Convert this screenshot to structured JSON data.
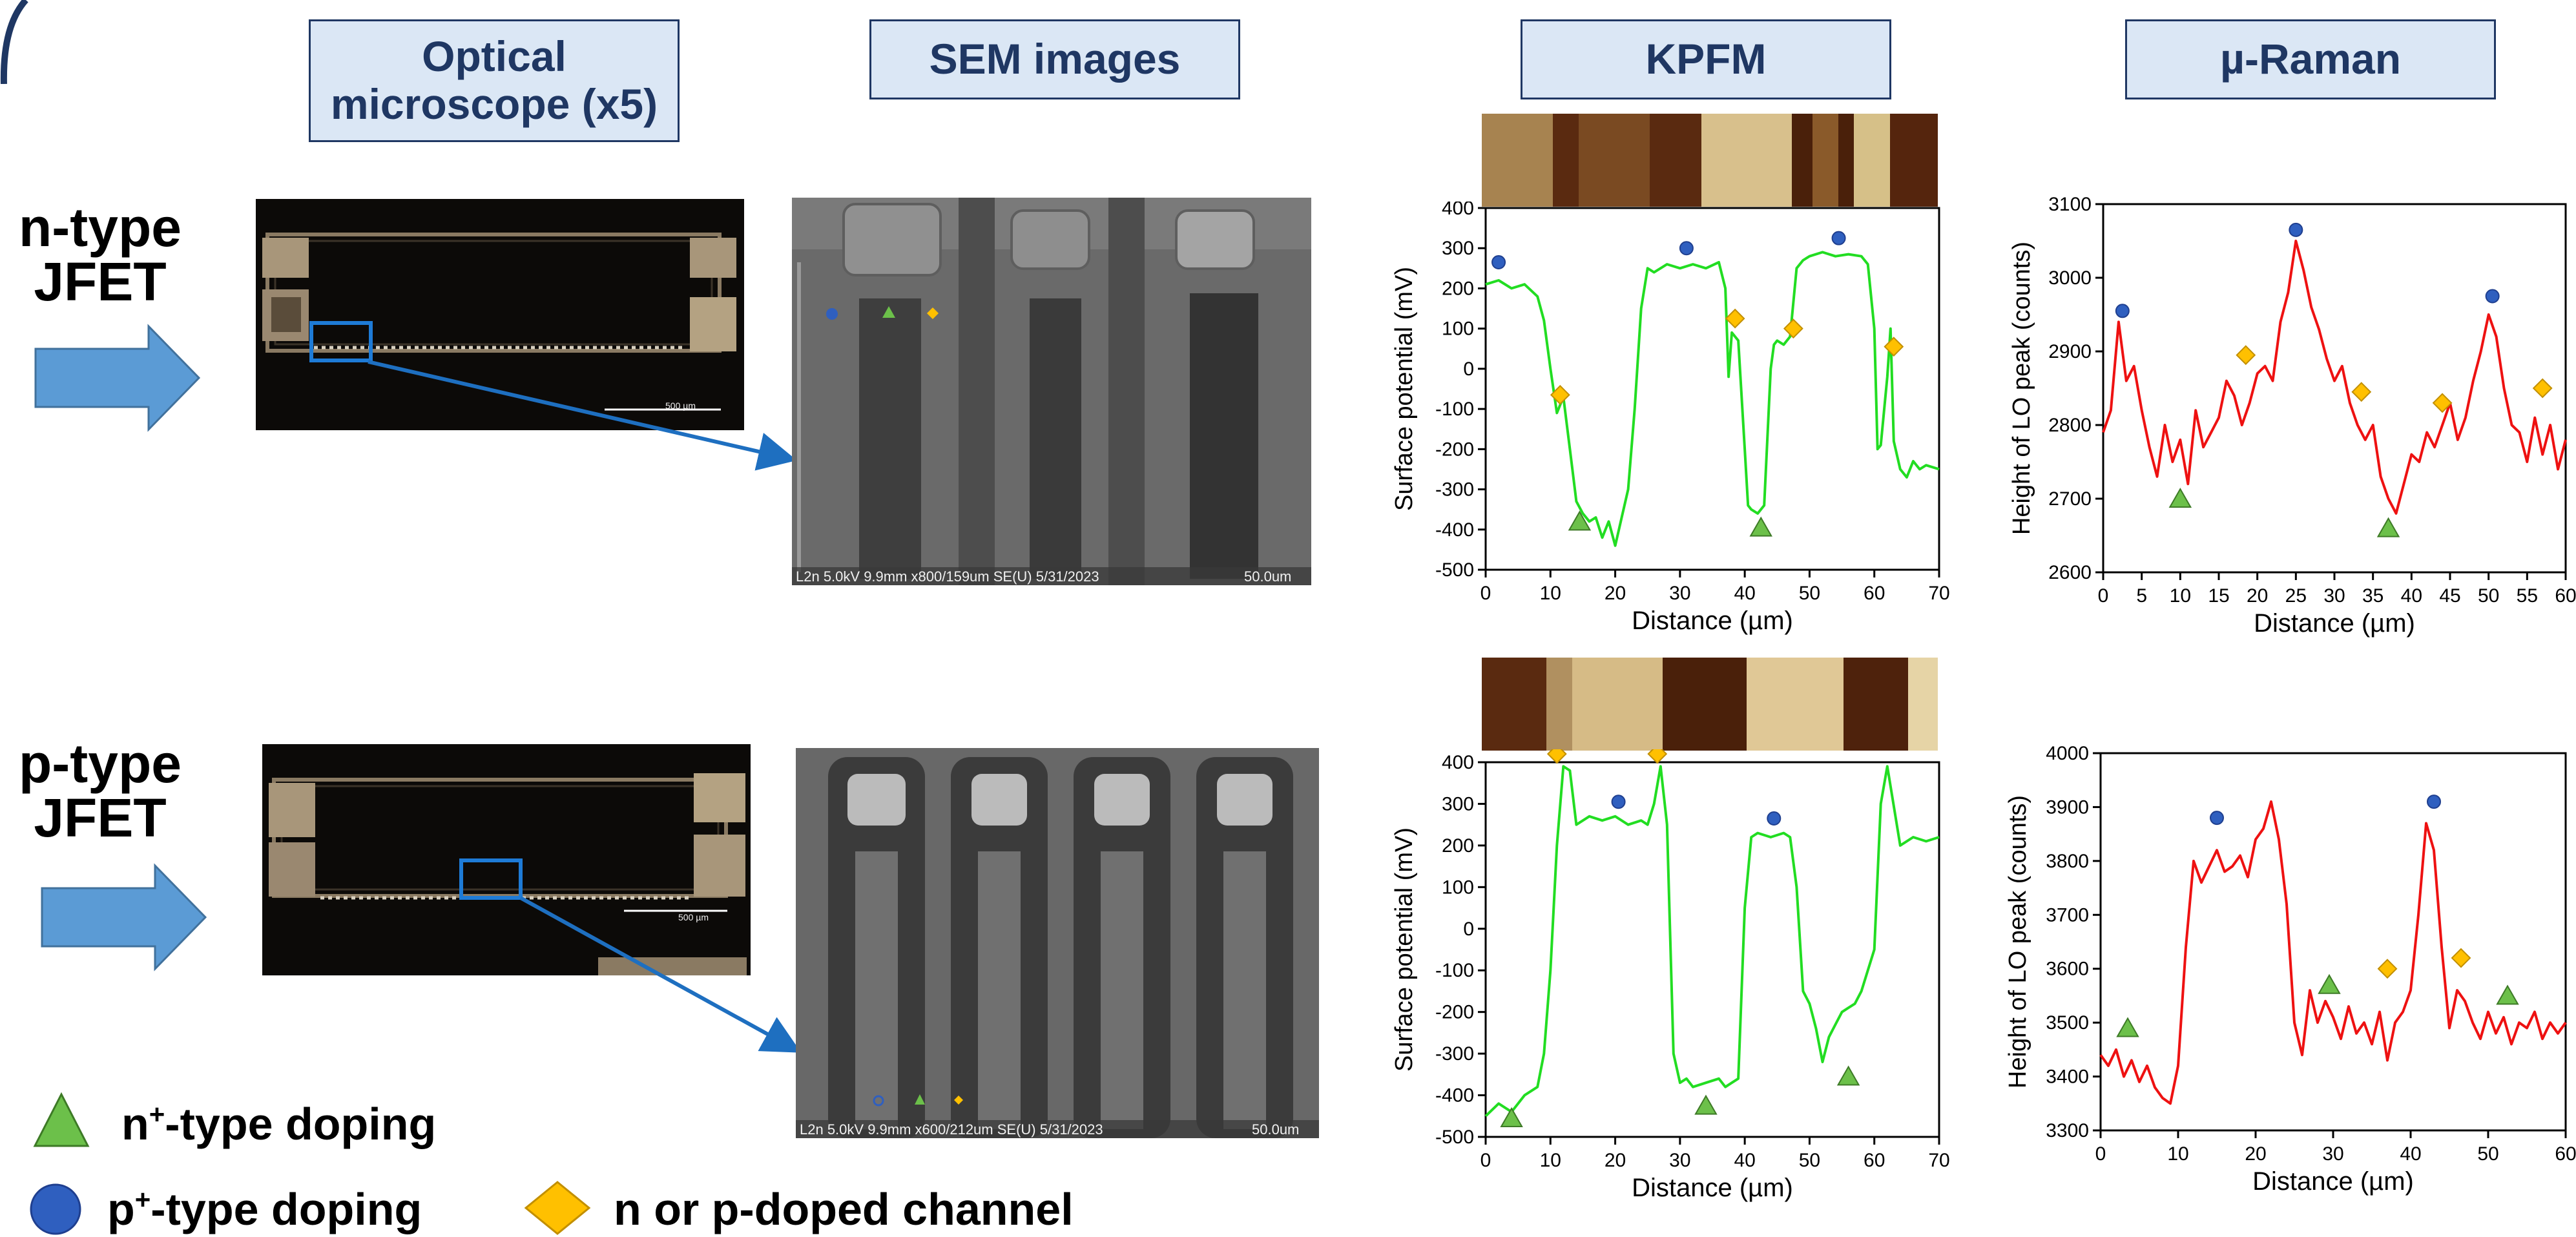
{
  "headers": {
    "optical": "Optical microscope (x5)",
    "sem": "SEM images",
    "kpfm": "KPFM",
    "raman": "µ-Raman"
  },
  "rows": {
    "n": {
      "line1": "n-type",
      "line2": "JFET"
    },
    "p": {
      "line1": "p-type",
      "line2": "JFET"
    }
  },
  "optical_scale": {
    "n": "500 µm",
    "p": "500 µm"
  },
  "sem_captions": {
    "n_left": "L2n 5.0kV 9.9mm x800/159um SE(U) 5/31/2023",
    "n_right": "50.0um",
    "p_left": "L2n 5.0kV 9.9mm x600/212um SE(U) 5/31/2023",
    "p_right": "50.0um"
  },
  "legend": {
    "n_plus": {
      "base": "n",
      "sup": "+",
      "rest": "-type doping"
    },
    "p_plus": {
      "base": "p",
      "sup": "+",
      "rest": "-type doping"
    },
    "channel": "n or p-doped channel"
  },
  "colors": {
    "header_fill": "#dbe7f5",
    "header_border": "#1f3763",
    "arrow_fill": "#5b9bd5",
    "kpfm_line": "#22dd22",
    "raman_line": "#ee1111",
    "triangle": "#6cc04a",
    "circle": "#2f5fbf",
    "diamond": "#ffc000"
  },
  "chart_data": [
    {
      "type": "line",
      "id": "kpfm_n",
      "xlabel": "Distance (µm)",
      "ylabel": "Surface potential (mV)",
      "xlim": [
        0,
        70
      ],
      "ylim": [
        -500,
        400
      ],
      "xticks": [
        0,
        10,
        20,
        30,
        40,
        50,
        60,
        70
      ],
      "yticks": [
        -500,
        -400,
        -300,
        -200,
        -100,
        0,
        100,
        200,
        300,
        400
      ],
      "x": [
        0,
        2,
        4,
        6,
        8,
        9,
        10,
        11,
        12,
        13,
        14,
        15,
        16,
        17,
        18,
        19,
        20,
        21,
        22,
        23,
        24,
        25,
        26,
        28,
        30,
        32,
        34,
        36,
        37,
        37.5,
        38,
        39,
        40,
        40.5,
        41,
        42,
        43,
        44,
        44.5,
        45,
        46,
        47,
        48,
        49,
        50,
        52,
        54,
        56,
        58,
        59,
        60,
        60.5,
        61,
        62,
        62.5,
        63,
        64,
        65,
        66,
        67,
        68,
        70
      ],
      "y": [
        210,
        220,
        200,
        210,
        180,
        120,
        0,
        -110,
        -70,
        -200,
        -330,
        -360,
        -380,
        -370,
        -420,
        -380,
        -440,
        -370,
        -300,
        -100,
        150,
        250,
        240,
        260,
        250,
        260,
        250,
        265,
        200,
        -20,
        90,
        70,
        -200,
        -340,
        -350,
        -360,
        -340,
        0,
        60,
        70,
        60,
        80,
        250,
        270,
        280,
        290,
        280,
        285,
        280,
        260,
        100,
        -200,
        -190,
        -20,
        100,
        -180,
        -250,
        -270,
        -230,
        -250,
        -240,
        -250
      ]
    },
    {
      "type": "line",
      "id": "kpfm_p",
      "xlabel": "Distance (µm)",
      "ylabel": "Surface potential (mV)",
      "xlim": [
        0,
        70
      ],
      "ylim": [
        -500,
        400
      ],
      "xticks": [
        0,
        10,
        20,
        30,
        40,
        50,
        60,
        70
      ],
      "yticks": [
        -500,
        -400,
        -300,
        -200,
        -100,
        0,
        100,
        200,
        300,
        400
      ],
      "x": [
        0,
        2,
        4,
        6,
        8,
        9,
        10,
        11,
        12,
        13,
        14,
        16,
        18,
        20,
        22,
        24,
        25,
        26,
        27,
        28,
        29,
        30,
        31,
        32,
        34,
        36,
        37,
        38,
        39,
        40,
        41,
        42,
        44,
        46,
        47,
        48,
        49,
        50,
        51,
        52,
        53,
        54,
        55,
        56,
        57,
        58,
        59,
        60,
        61,
        62,
        64,
        66,
        68,
        70
      ],
      "y": [
        -450,
        -420,
        -440,
        -400,
        -380,
        -300,
        -100,
        200,
        390,
        380,
        250,
        270,
        260,
        270,
        250,
        260,
        250,
        300,
        390,
        250,
        -300,
        -370,
        -360,
        -380,
        -370,
        -360,
        -380,
        -370,
        -360,
        50,
        220,
        230,
        220,
        230,
        220,
        100,
        -150,
        -180,
        -240,
        -320,
        -260,
        -230,
        -200,
        -190,
        -180,
        -150,
        -100,
        -50,
        300,
        390,
        200,
        220,
        210,
        220
      ]
    },
    {
      "type": "line",
      "id": "raman_n",
      "xlabel": "Distance (µm)",
      "ylabel": "Height of LO peak (counts)",
      "xlim": [
        0,
        60
      ],
      "ylim": [
        2600,
        3100
      ],
      "xticks": [
        0,
        5,
        10,
        15,
        20,
        25,
        30,
        35,
        40,
        45,
        50,
        55,
        60
      ],
      "yticks": [
        2600,
        2700,
        2800,
        2900,
        3000,
        3100
      ],
      "x": [
        0,
        1,
        2,
        3,
        4,
        5,
        6,
        7,
        8,
        9,
        10,
        11,
        12,
        13,
        14,
        15,
        16,
        17,
        18,
        19,
        20,
        21,
        22,
        23,
        24,
        25,
        26,
        27,
        28,
        29,
        30,
        31,
        32,
        33,
        34,
        35,
        36,
        37,
        38,
        39,
        40,
        41,
        42,
        43,
        44,
        45,
        46,
        47,
        48,
        49,
        50,
        51,
        52,
        53,
        54,
        55,
        56,
        57,
        58,
        59,
        60
      ],
      "y": [
        2790,
        2820,
        2940,
        2860,
        2880,
        2820,
        2770,
        2730,
        2800,
        2750,
        2780,
        2720,
        2820,
        2770,
        2790,
        2810,
        2860,
        2840,
        2800,
        2830,
        2870,
        2880,
        2860,
        2940,
        2980,
        3050,
        3010,
        2960,
        2930,
        2890,
        2860,
        2880,
        2830,
        2800,
        2780,
        2800,
        2730,
        2700,
        2680,
        2720,
        2760,
        2750,
        2790,
        2770,
        2800,
        2830,
        2780,
        2810,
        2860,
        2900,
        2950,
        2920,
        2850,
        2800,
        2790,
        2750,
        2810,
        2760,
        2800,
        2740,
        2780
      ]
    },
    {
      "type": "line",
      "id": "raman_p",
      "xlabel": "Distance (µm)",
      "ylabel": "Height of LO peak (counts)",
      "xlim": [
        0,
        60
      ],
      "ylim": [
        3300,
        4000
      ],
      "xticks": [
        0,
        10,
        20,
        30,
        40,
        50,
        60
      ],
      "yticks": [
        3300,
        3400,
        3500,
        3600,
        3700,
        3800,
        3900,
        4000
      ],
      "x": [
        0,
        1,
        2,
        3,
        4,
        5,
        6,
        7,
        8,
        9,
        10,
        11,
        12,
        13,
        14,
        15,
        16,
        17,
        18,
        19,
        20,
        21,
        22,
        23,
        24,
        25,
        26,
        27,
        28,
        29,
        30,
        31,
        32,
        33,
        34,
        35,
        36,
        37,
        38,
        39,
        40,
        41,
        42,
        43,
        44,
        45,
        46,
        47,
        48,
        49,
        50,
        51,
        52,
        53,
        54,
        55,
        56,
        57,
        58,
        59,
        60
      ],
      "y": [
        3440,
        3420,
        3450,
        3400,
        3430,
        3390,
        3420,
        3380,
        3360,
        3350,
        3420,
        3640,
        3800,
        3760,
        3790,
        3820,
        3780,
        3790,
        3810,
        3770,
        3840,
        3860,
        3910,
        3840,
        3720,
        3500,
        3440,
        3560,
        3500,
        3540,
        3510,
        3470,
        3530,
        3480,
        3500,
        3460,
        3520,
        3430,
        3500,
        3520,
        3560,
        3700,
        3870,
        3820,
        3640,
        3490,
        3560,
        3540,
        3500,
        3470,
        3520,
        3480,
        3510,
        3460,
        3500,
        3490,
        3520,
        3470,
        3500,
        3480,
        3500
      ]
    }
  ]
}
